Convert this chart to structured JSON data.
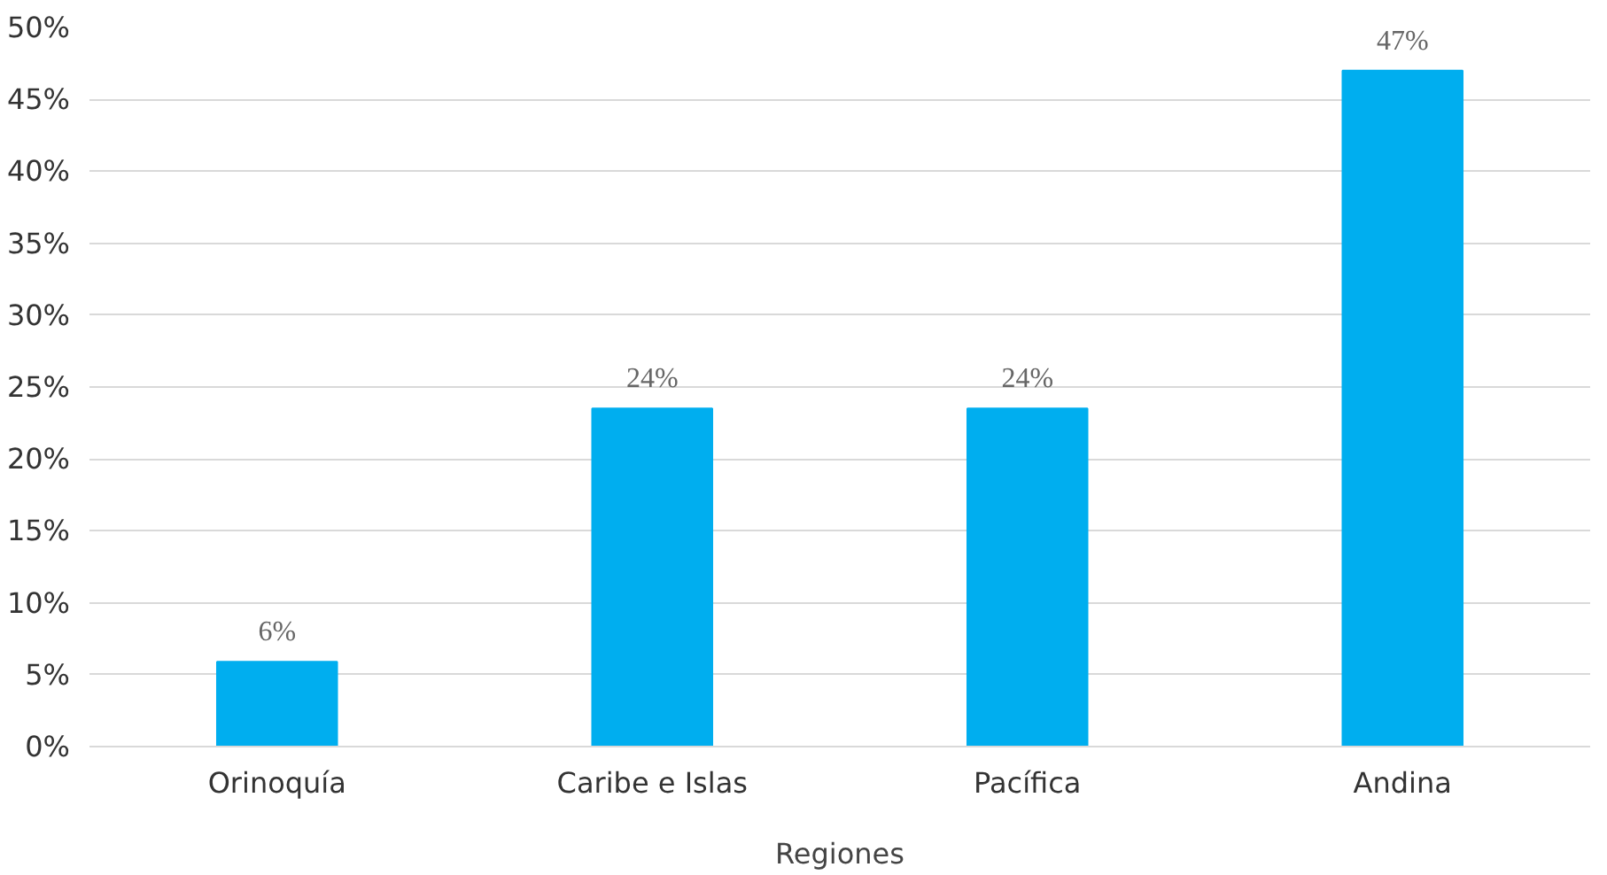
{
  "chart_data": {
    "type": "bar",
    "xlabel": "Regiones",
    "categories": [
      "Orinoquía",
      "Caribe e Islas",
      "Pacífica",
      "Andina"
    ],
    "values": [
      5.9,
      23.5,
      23.5,
      47
    ],
    "value_labels": [
      "6%",
      "24%",
      "24%",
      "47%"
    ],
    "color": "#00aeef",
    "ylim": [
      0,
      50
    ],
    "yticks": [
      {
        "value": 0,
        "label": "0%"
      },
      {
        "value": 5,
        "label": "5%"
      },
      {
        "value": 10,
        "label": "10%"
      },
      {
        "value": 15,
        "label": "15%"
      },
      {
        "value": 20,
        "label": "20%"
      },
      {
        "value": 25,
        "label": "25%"
      },
      {
        "value": 30,
        "label": "30%"
      },
      {
        "value": 35,
        "label": "35%"
      },
      {
        "value": 40,
        "label": "40%"
      },
      {
        "value": 45,
        "label": "45%"
      },
      {
        "value": 50,
        "label": "50%"
      }
    ],
    "grid": "y"
  }
}
